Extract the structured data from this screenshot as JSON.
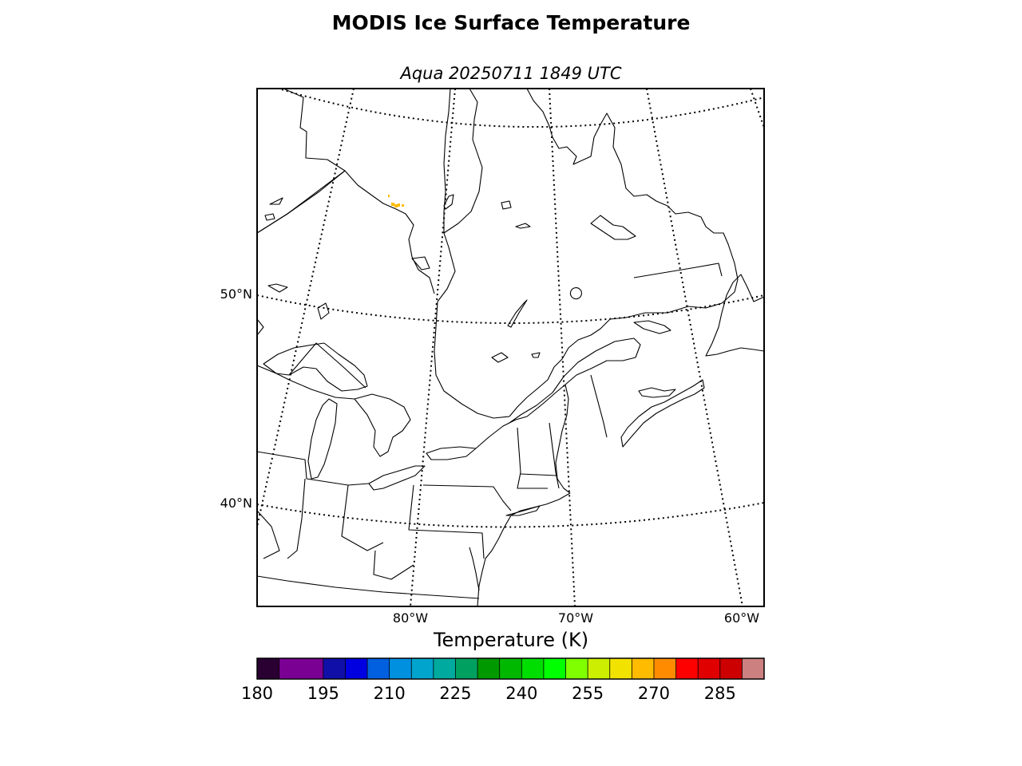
{
  "title": "MODIS Ice Surface Temperature",
  "subtitle": "Aqua 20250711 1849 UTC",
  "map": {
    "lat_labels": [
      "50°N",
      "40°N"
    ],
    "lon_labels": [
      "80°W",
      "70°W",
      "60°W"
    ],
    "highlight_color": "#ffbb00"
  },
  "colorbar": {
    "label": "Temperature (K)",
    "min": 180,
    "max": 295,
    "ticks": [
      "180",
      "195",
      "210",
      "225",
      "240",
      "255",
      "270",
      "285"
    ],
    "segments": [
      {
        "from": 180,
        "to": 185,
        "color": "#2a0033"
      },
      {
        "from": 185,
        "to": 195,
        "color": "#7a0094"
      },
      {
        "from": 195,
        "to": 200,
        "color": "#1010a8"
      },
      {
        "from": 200,
        "to": 205,
        "color": "#0000e0"
      },
      {
        "from": 205,
        "to": 210,
        "color": "#0060e0"
      },
      {
        "from": 210,
        "to": 215,
        "color": "#0090e0"
      },
      {
        "from": 215,
        "to": 220,
        "color": "#00a4cc"
      },
      {
        "from": 220,
        "to": 225,
        "color": "#00aa9e"
      },
      {
        "from": 225,
        "to": 230,
        "color": "#00a060"
      },
      {
        "from": 230,
        "to": 235,
        "color": "#009900"
      },
      {
        "from": 235,
        "to": 240,
        "color": "#00b800"
      },
      {
        "from": 240,
        "to": 245,
        "color": "#00dd00"
      },
      {
        "from": 245,
        "to": 250,
        "color": "#00ff00"
      },
      {
        "from": 250,
        "to": 255,
        "color": "#80ff00"
      },
      {
        "from": 255,
        "to": 260,
        "color": "#ccee00"
      },
      {
        "from": 260,
        "to": 265,
        "color": "#f2e200"
      },
      {
        "from": 265,
        "to": 270,
        "color": "#ffbb00"
      },
      {
        "from": 270,
        "to": 275,
        "color": "#ff8c00"
      },
      {
        "from": 275,
        "to": 280,
        "color": "#ff0000"
      },
      {
        "from": 280,
        "to": 285,
        "color": "#e00000"
      },
      {
        "from": 285,
        "to": 290,
        "color": "#cc0000"
      },
      {
        "from": 290,
        "to": 295,
        "color": "#cc8080"
      }
    ]
  }
}
